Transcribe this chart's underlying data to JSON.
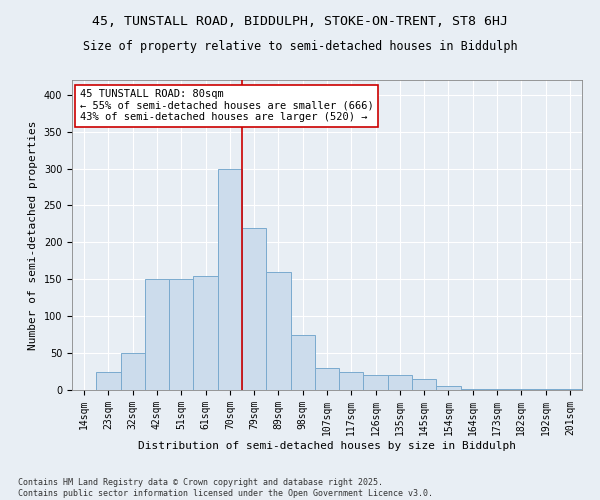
{
  "title_line1": "45, TUNSTALL ROAD, BIDDULPH, STOKE-ON-TRENT, ST8 6HJ",
  "title_line2": "Size of property relative to semi-detached houses in Biddulph",
  "xlabel": "Distribution of semi-detached houses by size in Biddulph",
  "ylabel": "Number of semi-detached properties",
  "categories": [
    "14sqm",
    "23sqm",
    "32sqm",
    "42sqm",
    "51sqm",
    "61sqm",
    "70sqm",
    "79sqm",
    "89sqm",
    "98sqm",
    "107sqm",
    "117sqm",
    "126sqm",
    "135sqm",
    "145sqm",
    "154sqm",
    "164sqm",
    "173sqm",
    "182sqm",
    "192sqm",
    "201sqm"
  ],
  "values": [
    0,
    25,
    50,
    150,
    150,
    155,
    300,
    220,
    160,
    75,
    30,
    25,
    20,
    20,
    15,
    5,
    2,
    2,
    2,
    1,
    2
  ],
  "bar_color": "#ccdcec",
  "bar_edge_color": "#7aaace",
  "vline_color": "#cc0000",
  "annotation_text_line1": "45 TUNSTALL ROAD: 80sqm",
  "annotation_text_line2": "← 55% of semi-detached houses are smaller (666)",
  "annotation_text_line3": "43% of semi-detached houses are larger (520) →",
  "annotation_box_color": "#ffffff",
  "annotation_box_edge": "#cc0000",
  "ylim": [
    0,
    420
  ],
  "yticks": [
    0,
    50,
    100,
    150,
    200,
    250,
    300,
    350,
    400
  ],
  "background_color": "#e8eef4",
  "plot_background": "#e8eef4",
  "grid_color": "#ffffff",
  "footnote": "Contains HM Land Registry data © Crown copyright and database right 2025.\nContains public sector information licensed under the Open Government Licence v3.0.",
  "title_fontsize": 9.5,
  "subtitle_fontsize": 8.5,
  "axis_label_fontsize": 8,
  "tick_fontsize": 7,
  "annotation_fontsize": 7.5,
  "footnote_fontsize": 6
}
